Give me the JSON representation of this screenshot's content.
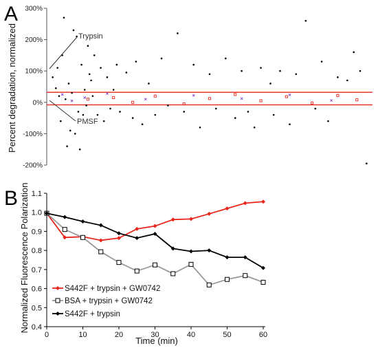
{
  "panel_a": {
    "letter": "A",
    "ylabel": "Percent degradation, normalized",
    "annotations": {
      "upper": "Trypsin",
      "lower": "PMSF"
    }
  },
  "panel_b": {
    "letter": "B",
    "ylabel": "Normalized Fluorescence Polarization",
    "xlabel": "Time (min)"
  },
  "chart_data": [
    {
      "type": "scatter",
      "panel": "A",
      "title": "",
      "xlabel": "",
      "ylabel": "Percent degradation, normalized",
      "ylim": [
        -200,
        300
      ],
      "xlim": [
        0,
        1
      ],
      "yticks": [
        -200,
        -100,
        0,
        100,
        200,
        300
      ],
      "ytick_labels": [
        "-200%",
        "-100%",
        "0%",
        "100%",
        "200%",
        "300%"
      ],
      "grid": false,
      "bands": {
        "color": "#e8261c",
        "values": [
          32,
          -8
        ]
      },
      "series": [
        {
          "color": "#000000",
          "marker": "dot",
          "points": [
            [
              0.01,
              80
            ],
            [
              0.02,
              45
            ],
            [
              0.025,
              110
            ],
            [
              0.03,
              20
            ],
            [
              0.035,
              -60
            ],
            [
              0.04,
              150
            ],
            [
              0.045,
              270
            ],
            [
              0.05,
              10
            ],
            [
              0.055,
              -140
            ],
            [
              0.06,
              60
            ],
            [
              0.065,
              -90
            ],
            [
              0.07,
              30
            ],
            [
              0.075,
              230
            ],
            [
              0.08,
              -100
            ],
            [
              0.085,
              210
            ],
            [
              0.09,
              -30
            ],
            [
              0.095,
              -150
            ],
            [
              0.1,
              120
            ],
            [
              0.105,
              -40
            ],
            [
              0.11,
              40
            ],
            [
              0.115,
              -10
            ],
            [
              0.12,
              180
            ],
            [
              0.125,
              90
            ],
            [
              0.13,
              70
            ],
            [
              0.135,
              20
            ],
            [
              0.14,
              150
            ],
            [
              0.15,
              -40
            ],
            [
              0.16,
              110
            ],
            [
              0.17,
              -60
            ],
            [
              0.18,
              80
            ],
            [
              0.19,
              -20
            ],
            [
              0.2,
              40
            ],
            [
              0.21,
              120
            ],
            [
              0.22,
              -30
            ],
            [
              0.24,
              95
            ],
            [
              0.26,
              -50
            ],
            [
              0.27,
              130
            ],
            [
              0.29,
              -70
            ],
            [
              0.31,
              60
            ],
            [
              0.33,
              -40
            ],
            [
              0.35,
              140
            ],
            [
              0.37,
              -10
            ],
            [
              0.4,
              220
            ],
            [
              0.42,
              -30
            ],
            [
              0.45,
              120
            ],
            [
              0.47,
              -80
            ],
            [
              0.5,
              90
            ],
            [
              0.52,
              -20
            ],
            [
              0.55,
              140
            ],
            [
              0.58,
              -50
            ],
            [
              0.6,
              100
            ],
            [
              0.62,
              -30
            ],
            [
              0.64,
              -80
            ],
            [
              0.66,
              110
            ],
            [
              0.69,
              60
            ],
            [
              0.7,
              -40
            ],
            [
              0.72,
              100
            ],
            [
              0.75,
              -70
            ],
            [
              0.77,
              90
            ],
            [
              0.8,
              260
            ],
            [
              0.83,
              -20
            ],
            [
              0.85,
              130
            ],
            [
              0.87,
              -60
            ],
            [
              0.9,
              80
            ],
            [
              0.93,
              70
            ],
            [
              0.95,
              160
            ],
            [
              0.97,
              100
            ],
            [
              0.99,
              -195
            ]
          ]
        },
        {
          "color": "#e8261c",
          "marker": "square",
          "points": [
            [
              0.12,
              10
            ],
            [
              0.2,
              15
            ],
            [
              0.26,
              0
            ],
            [
              0.33,
              20
            ],
            [
              0.42,
              -5
            ],
            [
              0.5,
              12
            ],
            [
              0.58,
              25
            ],
            [
              0.66,
              5
            ],
            [
              0.74,
              18
            ],
            [
              0.82,
              -2
            ],
            [
              0.9,
              22
            ],
            [
              0.96,
              8
            ]
          ]
        },
        {
          "color": "#8a3fc9",
          "marker": "x",
          "points": [
            [
              0.04,
              25
            ],
            [
              0.07,
              5
            ],
            [
              0.11,
              15
            ],
            [
              0.18,
              28
            ],
            [
              0.3,
              10
            ],
            [
              0.45,
              22
            ],
            [
              0.6,
              12
            ],
            [
              0.75,
              24
            ],
            [
              0.88,
              6
            ]
          ]
        }
      ]
    },
    {
      "type": "line",
      "panel": "B",
      "title": "",
      "xlabel": "Time (min)",
      "ylabel": "Normalized Fluorescence Polarization",
      "xlim": [
        0,
        60
      ],
      "ylim": [
        0.4,
        1.1
      ],
      "xticks": [
        0,
        10,
        20,
        30,
        40,
        50,
        60
      ],
      "yticks": [
        0.4,
        0.5,
        0.6,
        0.7,
        0.8,
        0.9,
        1.0,
        1.1
      ],
      "ytick_labels": [
        "0.4",
        "0.5",
        "0.6",
        "0.7",
        "0.8",
        "0.9",
        "1.0",
        "1.1"
      ],
      "grid": false,
      "legend": "bottom-left",
      "x": [
        0,
        5,
        10,
        15,
        20,
        25,
        30,
        35,
        40,
        45,
        50,
        55,
        60
      ],
      "series": [
        {
          "name": "S442F + trypsin + GW0742",
          "color": "#e8261c",
          "marker": "diamond",
          "values": [
            0.995,
            0.868,
            0.872,
            0.853,
            0.865,
            0.913,
            0.928,
            0.962,
            0.965,
            0.992,
            1.02,
            1.048,
            1.056
          ]
        },
        {
          "name": "BSA + trypsin + GW0742",
          "color": "#9a9a9a",
          "marker": "open-square",
          "values": [
            0.995,
            0.91,
            0.868,
            0.793,
            0.737,
            0.692,
            0.724,
            0.678,
            0.727,
            0.619,
            0.648,
            0.668,
            0.633
          ]
        },
        {
          "name": "S442F + trypsin",
          "color": "#000000",
          "marker": "diamond",
          "values": [
            0.995,
            0.975,
            0.952,
            0.932,
            0.89,
            0.865,
            0.887,
            0.81,
            0.795,
            0.8,
            0.764,
            0.764,
            0.708
          ]
        }
      ]
    }
  ]
}
